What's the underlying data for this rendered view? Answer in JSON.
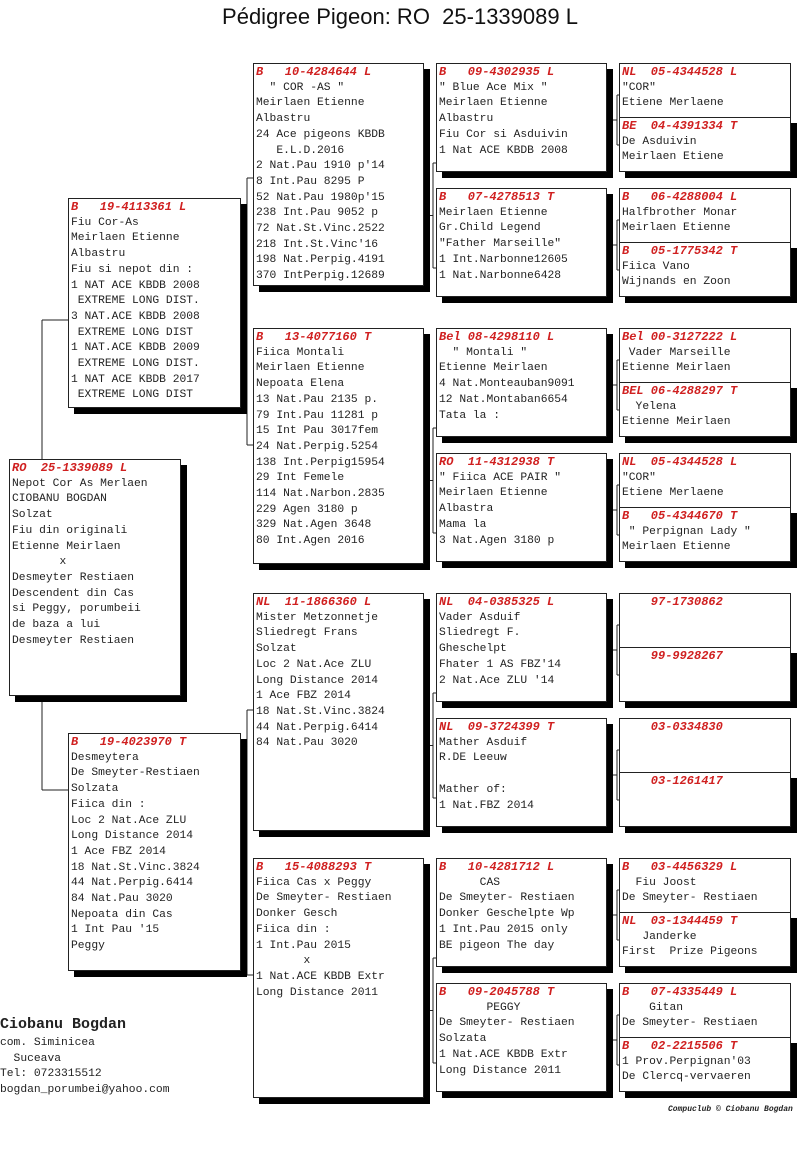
{
  "title": "Pédigree Pigeon: RO  25-1339089 L",
  "subject": {
    "header": "RO  25-1339089 L",
    "lines": [
      "Nepot Cor As Merlaen",
      "CIOBANU BOGDAN",
      "Solzat",
      "Fiu din originali",
      "Etienne Meirlaen",
      "       x",
      "Desmeyter Restiaen",
      "Descendent din Cas",
      "si Peggy, porumbeii",
      "de baza a lui",
      "Desmeyter Restiaen"
    ]
  },
  "parents": [
    {
      "header": "B   19-4113361 L",
      "lines": [
        "Fiu Cor-As",
        "Meirlaen Etienne",
        "Albastru",
        "Fiu si nepot din :",
        "1 NAT ACE KBDB 2008",
        " EXTREME LONG DIST.",
        "3 NAT.ACE KBDB 2008",
        " EXTREME LONG DIST",
        "1 NAT.ACE KBDB 2009",
        " EXTREME LONG DIST.",
        "1 NAT ACE KBDB 2017",
        " EXTREME LONG DIST"
      ]
    },
    {
      "header": "B   19-4023970 T",
      "lines": [
        "Desmeytera",
        "De Smeyter-Restiaen",
        "Solzata",
        "Fiica din :",
        "Loc 2 Nat.Ace ZLU",
        "Long Distance 2014",
        "1 Ace FBZ 2014",
        "18 Nat.St.Vinc.3824",
        "44 Nat.Perpig.6414",
        "84 Nat.Pau 3020",
        "Nepoata din Cas",
        "1 Int Pau '15",
        "Peggy"
      ]
    }
  ],
  "grandparents": [
    {
      "header": "B   10-4284644 L",
      "lines": [
        "  \" COR -AS \"",
        "Meirlaen Etienne",
        "Albastru",
        "24 Ace pigeons KBDB",
        "   E.L.D.2016",
        "2 Nat.Pau 1910 p'14",
        "8 Int.Pau 8295 P",
        "52 Nat.Pau 1980p'15",
        "238 Int.Pau 9052 p",
        "72 Nat.St.Vinc.2522",
        "218 Int.St.Vinc'16",
        "198 Nat.Perpig.4191",
        "370 IntPerpig.12689"
      ]
    },
    {
      "header": "B   13-4077160 T",
      "lines": [
        "Fiica Montali",
        "Meirlaen Etienne",
        "Nepoata Elena",
        "13 Nat.Pau 2135 p.",
        "79 Int.Pau 11281 p",
        "15 Int Pau 3017fem",
        "24 Nat.Perpig.5254",
        "138 Int.Perpig15954",
        "29 Int Femele",
        "114 Nat.Narbon.2835",
        "229 Agen 3180 p",
        "329 Nat.Agen 3648",
        "80 Int.Agen 2016"
      ]
    },
    {
      "header": "NL  11-1866360 L",
      "lines": [
        "Mister Metzonnetje",
        "Sliedregt Frans",
        "Solzat",
        "Loc 2 Nat.Ace ZLU",
        "Long Distance 2014",
        "1 Ace FBZ 2014",
        "18 Nat.St.Vinc.3824",
        "44 Nat.Perpig.6414",
        "84 Nat.Pau 3020"
      ]
    },
    {
      "header": "B   15-4088293 T",
      "lines": [
        "Fiica Cas x Peggy",
        "De Smeyter- Restiaen",
        "Donker Gesch",
        "Fiica din :",
        "1 Int.Pau 2015",
        "       x",
        "1 Nat.ACE KBDB Extr",
        "Long Distance 2011"
      ]
    }
  ],
  "great_grandparents": [
    {
      "header": "B   09-4302935 L",
      "lines": [
        "\" Blue Ace Mix \"",
        "Meirlaen Etienne",
        "Albastru",
        "Fiu Cor si Asduivin",
        "1 Nat ACE KBDB 2008"
      ]
    },
    {
      "header": "B   07-4278513 T",
      "lines": [
        "Meirlaen Etienne",
        "Gr.Child Legend",
        "\"Father Marseille\"",
        "1 Int.Narbonne12605",
        "1 Nat.Narbonne6428"
      ]
    },
    {
      "header": "Bel 08-4298110 L",
      "lines": [
        "  \" Montali \"",
        "Etienne Meirlaen",
        "4 Nat.Monteauban9091",
        "12 Nat.Montaban6654",
        "Tata la :"
      ]
    },
    {
      "header": "RO  11-4312938 T",
      "lines": [
        "\" Fiica ACE PAIR \"",
        "Meirlaen Etienne",
        "Albastra",
        "Mama la",
        "3 Nat.Agen 3180 p"
      ]
    },
    {
      "header": "NL  04-0385325 L",
      "lines": [
        "Vader Asduif",
        "Sliedregt F.",
        "Gheschelpt",
        "Fhater 1 AS FBZ'14",
        "2 Nat.Ace ZLU '14"
      ]
    },
    {
      "header": "NL  09-3724399 T",
      "lines": [
        "Mather Asduif",
        "R.DE Leeuw",
        "",
        "Mather of:",
        "1 Nat.FBZ 2014"
      ]
    },
    {
      "header": "B   10-4281712 L",
      "lines": [
        "      CAS",
        "De Smeyter- Restiaen",
        "Donker Geschelpte Wp",
        "1 Int.Pau 2015 only",
        "BE pigeon The day"
      ]
    },
    {
      "header": "B   09-2045788 T",
      "lines": [
        "       PEGGY",
        "De Smeyter- Restiaen",
        "Solzata",
        "1 Nat.ACE KBDB Extr",
        "Long Distance 2011"
      ]
    }
  ],
  "gen5": [
    {
      "header": "NL  05-4344528 L",
      "lines": [
        "\"COR\"",
        "Etiene Merlaene"
      ]
    },
    {
      "header": "BE  04-4391334 T",
      "lines": [
        "De Asduivin",
        "Meirlaen Etiene"
      ]
    },
    {
      "header": "B   06-4288004 L",
      "lines": [
        "Halfbrother Monar",
        "Meirlaen Etienne"
      ]
    },
    {
      "header": "B   05-1775342 T",
      "lines": [
        "Fiica Vano",
        "Wijnands en Zoon"
      ]
    },
    {
      "header": "Bel 00-3127222 L",
      "lines": [
        " Vader Marseille",
        "Etienne Meirlaen"
      ]
    },
    {
      "header": "BEL 06-4288297 T",
      "lines": [
        "  Yelena",
        "Etienne Meirlaen"
      ]
    },
    {
      "header": "NL  05-4344528 L",
      "lines": [
        "\"COR\"",
        "Etiene Merlaene"
      ]
    },
    {
      "header": "B   05-4344670 T",
      "lines": [
        " \" Perpignan Lady \"",
        "Meirlaen Etienne"
      ]
    },
    {
      "header": "    97-1730862",
      "lines": []
    },
    {
      "header": "    99-9928267",
      "lines": []
    },
    {
      "header": "    03-0334830",
      "lines": []
    },
    {
      "header": "    03-1261417",
      "lines": []
    },
    {
      "header": "B   03-4456329 L",
      "lines": [
        "  Fiu Joost",
        "De Smeyter- Restiaen"
      ]
    },
    {
      "header": "NL  03-1344459 T",
      "lines": [
        "   Janderke",
        "First  Prize Pigeons"
      ]
    },
    {
      "header": "B   07-4335449 L",
      "lines": [
        "    Gitan",
        "De Smeyter- Restiaen"
      ]
    },
    {
      "header": "B   02-2215506 T",
      "lines": [
        "1 Prov.Perpignan'03",
        "De Clercq-vervaeren"
      ]
    }
  ],
  "breeder": {
    "name": "Ciobanu Bogdan",
    "lines": [
      "com. Siminicea",
      "  Suceava",
      "Tel: 0723315512",
      "bogdan_porumbei@yahoo.com"
    ]
  },
  "copyright": "Compuclub © Ciobanu Bogdan",
  "colors": {
    "ring_number": "#d02020",
    "border": "#222222",
    "shadow": "#000000"
  }
}
